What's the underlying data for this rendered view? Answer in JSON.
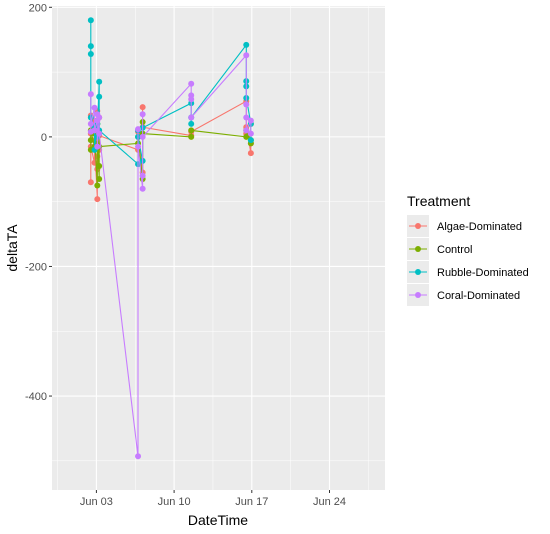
{
  "chart_data": {
    "type": "line",
    "xlabel": "DateTime",
    "ylabel": "deltaTA",
    "xlim": [
      "2024-05-30",
      "2024-06-29"
    ],
    "ylim": [
      -545,
      202
    ],
    "x_ticks": [
      {
        "x": "2024-06-03",
        "label": "Jun 03"
      },
      {
        "x": "2024-06-10",
        "label": "Jun 10"
      },
      {
        "x": "2024-06-17",
        "label": "Jun 17"
      },
      {
        "x": "2024-06-24",
        "label": "Jun 24"
      }
    ],
    "y_ticks": [
      {
        "y": 200,
        "label": "200"
      },
      {
        "y": 0,
        "label": "0"
      },
      {
        "y": -200,
        "label": "-200"
      },
      {
        "y": -400,
        "label": "-400"
      }
    ],
    "grid": true,
    "legend": {
      "title": "Treatment",
      "position": "right"
    },
    "series": [
      {
        "name": "Algae-Dominated",
        "color": "#F8766D",
        "points": [
          [
            "2024-06-02 12:00",
            -70
          ],
          [
            "2024-06-02 12:00",
            33
          ],
          [
            "2024-06-02 12:00",
            5
          ],
          [
            "2024-06-02 12:00",
            -15
          ],
          [
            "2024-06-02 20:00",
            -40
          ],
          [
            "2024-06-02 20:00",
            25
          ],
          [
            "2024-06-02 20:00",
            -5
          ],
          [
            "2024-06-03 02:00",
            -96
          ],
          [
            "2024-06-03 02:00",
            -30
          ],
          [
            "2024-06-03 02:00",
            40
          ],
          [
            "2024-06-03 02:00",
            -50
          ],
          [
            "2024-06-03 06:00",
            -20
          ],
          [
            "2024-06-03 06:00",
            30
          ],
          [
            "2024-06-03 06:00",
            2
          ],
          [
            "2024-06-06 18:00",
            -20
          ],
          [
            "2024-06-06 18:00",
            8
          ],
          [
            "2024-06-07 04:00",
            -55
          ],
          [
            "2024-06-07 04:00",
            46
          ],
          [
            "2024-06-07 04:00",
            15
          ],
          [
            "2024-06-11 13:00",
            2
          ],
          [
            "2024-06-11 13:00",
            8
          ],
          [
            "2024-06-16 12:00",
            55
          ],
          [
            "2024-06-16 12:00",
            5
          ],
          [
            "2024-06-16 12:00",
            15
          ],
          [
            "2024-06-16 22:00",
            -25
          ],
          [
            "2024-06-16 22:00",
            -10
          ]
        ]
      },
      {
        "name": "Control",
        "color": "#7CAE00",
        "points": [
          [
            "2024-06-02 12:00",
            -20
          ],
          [
            "2024-06-02 12:00",
            -5
          ],
          [
            "2024-06-02 12:00",
            10
          ],
          [
            "2024-06-02 20:00",
            -15
          ],
          [
            "2024-06-02 20:00",
            5
          ],
          [
            "2024-06-03 02:00",
            -75
          ],
          [
            "2024-06-03 02:00",
            -10
          ],
          [
            "2024-06-03 02:00",
            20
          ],
          [
            "2024-06-03 06:00",
            -65
          ],
          [
            "2024-06-03 06:00",
            -45
          ],
          [
            "2024-06-03 06:00",
            5
          ],
          [
            "2024-06-03 06:00",
            -15
          ],
          [
            "2024-06-06 18:00",
            -10
          ],
          [
            "2024-06-06 18:00",
            0
          ],
          [
            "2024-06-07 04:00",
            -65
          ],
          [
            "2024-06-07 04:00",
            23
          ],
          [
            "2024-06-07 04:00",
            5
          ],
          [
            "2024-06-11 13:00",
            0
          ],
          [
            "2024-06-11 13:00",
            10
          ],
          [
            "2024-06-16 12:00",
            0
          ],
          [
            "2024-06-16 12:00",
            10
          ],
          [
            "2024-06-16 22:00",
            -5
          ],
          [
            "2024-06-16 22:00",
            -10
          ],
          [
            "2024-06-16 22:00",
            20
          ]
        ]
      },
      {
        "name": "Rubble-Dominated",
        "color": "#00BFC4",
        "points": [
          [
            "2024-06-02 12:00",
            180
          ],
          [
            "2024-06-02 12:00",
            140
          ],
          [
            "2024-06-02 12:00",
            128
          ],
          [
            "2024-06-02 12:00",
            30
          ],
          [
            "2024-06-02 20:00",
            15
          ],
          [
            "2024-06-02 20:00",
            -20
          ],
          [
            "2024-06-03 02:00",
            20
          ],
          [
            "2024-06-03 02:00",
            0
          ],
          [
            "2024-06-03 06:00",
            85
          ],
          [
            "2024-06-03 06:00",
            62
          ],
          [
            "2024-06-03 06:00",
            10
          ],
          [
            "2024-06-06 18:00",
            -42
          ],
          [
            "2024-06-06 18:00",
            10
          ],
          [
            "2024-06-06 18:00",
            0
          ],
          [
            "2024-06-07 04:00",
            -37
          ],
          [
            "2024-06-07 04:00",
            14
          ],
          [
            "2024-06-11 13:00",
            52
          ],
          [
            "2024-06-11 13:00",
            20
          ],
          [
            "2024-06-11 13:00",
            30
          ],
          [
            "2024-06-16 12:00",
            142
          ],
          [
            "2024-06-16 12:00",
            86
          ],
          [
            "2024-06-16 12:00",
            78
          ],
          [
            "2024-06-16 12:00",
            60
          ],
          [
            "2024-06-16 22:00",
            20
          ],
          [
            "2024-06-16 22:00",
            -5
          ]
        ]
      },
      {
        "name": "Coral-Dominated",
        "color": "#C77CFF",
        "points": [
          [
            "2024-06-02 12:00",
            66
          ],
          [
            "2024-06-02 12:00",
            8
          ],
          [
            "2024-06-02 12:00",
            20
          ],
          [
            "2024-06-02 20:00",
            45
          ],
          [
            "2024-06-02 20:00",
            10
          ],
          [
            "2024-06-03 02:00",
            25
          ],
          [
            "2024-06-03 02:00",
            35
          ],
          [
            "2024-06-03 02:00",
            -15
          ],
          [
            "2024-06-03 06:00",
            30
          ],
          [
            "2024-06-03 06:00",
            5
          ],
          [
            "2024-06-06 18:00",
            -493
          ],
          [
            "2024-06-06 18:00",
            12
          ],
          [
            "2024-06-06 18:00",
            -15
          ],
          [
            "2024-06-07 04:00",
            -80
          ],
          [
            "2024-06-07 04:00",
            -60
          ],
          [
            "2024-06-07 04:00",
            35
          ],
          [
            "2024-06-07 04:00",
            0
          ],
          [
            "2024-06-11 13:00",
            82
          ],
          [
            "2024-06-11 13:00",
            64
          ],
          [
            "2024-06-11 13:00",
            58
          ],
          [
            "2024-06-11 13:00",
            30
          ],
          [
            "2024-06-16 12:00",
            126
          ],
          [
            "2024-06-16 12:00",
            50
          ],
          [
            "2024-06-16 12:00",
            30
          ],
          [
            "2024-06-16 12:00",
            10
          ],
          [
            "2024-06-16 22:00",
            25
          ],
          [
            "2024-06-16 22:00",
            5
          ]
        ]
      }
    ]
  }
}
